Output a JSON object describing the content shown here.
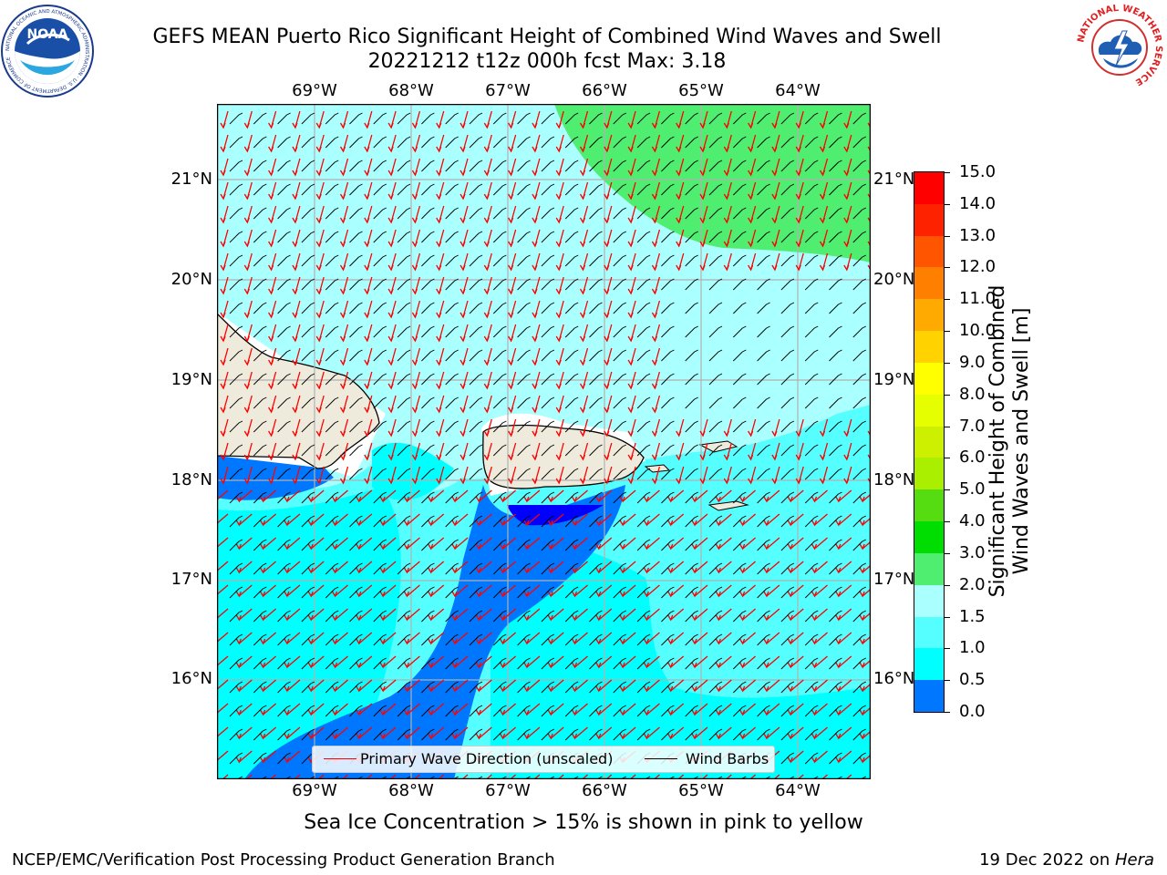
{
  "title": {
    "line1": "GEFS MEAN Puerto Rico Significant Height of Combined Wind Waves and Swell",
    "line2": "20221212 t12z 000h fcst   Max: 3.18"
  },
  "map": {
    "lon_labels": [
      "69°W",
      "68°W",
      "67°W",
      "66°W",
      "65°W",
      "64°W"
    ],
    "lat_labels": [
      "21°N",
      "20°N",
      "19°N",
      "18°N",
      "17°N",
      "16°N"
    ],
    "lon_range": [
      -70.0,
      -63.35
    ],
    "lat_range": [
      15.0,
      21.75
    ]
  },
  "colorbar": {
    "label": "Significant Height of Combined\nWind Waves and Swell [m]",
    "label_line1": "Significant Height of Combined",
    "label_line2": "Wind Waves and Swell [m]",
    "ticks": [
      "15.0",
      "14.0",
      "13.0",
      "12.0",
      "11.0",
      "10.0",
      "9.0",
      "8.0",
      "7.0",
      "6.0",
      "5.0",
      "4.0",
      "3.0",
      "2.0",
      "1.5",
      "1.0",
      "0.5",
      "0.0"
    ],
    "colors": [
      "#ff0000",
      "#ff2200",
      "#ff5500",
      "#ff7f00",
      "#ffaa00",
      "#ffd200",
      "#ffff00",
      "#e5ff00",
      "#ccf000",
      "#aaee00",
      "#55dd11",
      "#00dd00",
      "#50ee70",
      "#aaffff",
      "#55ffff",
      "#00ffff",
      "#0077ff",
      "#0000ff"
    ]
  },
  "legend": {
    "wave_label": "Primary Wave Direction (unscaled)",
    "barb_label": "Wind Barbs",
    "wave_color": "#ff0000",
    "barb_color": "#000000"
  },
  "footer": {
    "note": "Sea Ice Concentration > 15% is shown in pink to yellow",
    "left": "NCEP/EMC/Verification Post Processing Product Generation Branch",
    "right_date": "19 Dec 2022 on ",
    "right_host": "Hera"
  },
  "logos": {
    "noaa_text": "NOAA",
    "noaa_ring": "NATIONAL OCEANIC AND ATMOSPHERIC ADMINISTRATION · U.S. DEPARTMENT OF COMMERCE",
    "nws_ring": "NATIONAL WEATHER SERVICE"
  },
  "colors": {
    "land": "#efebdc",
    "swh_0_0p5": "#0000ff",
    "swh_0p5_1": "#0077ff",
    "swh_1_1p5": "#00ffff",
    "swh_1p5_2": "#55ffff",
    "swh_2_3": "#aaffff",
    "swh_3_4": "#50ee70"
  }
}
